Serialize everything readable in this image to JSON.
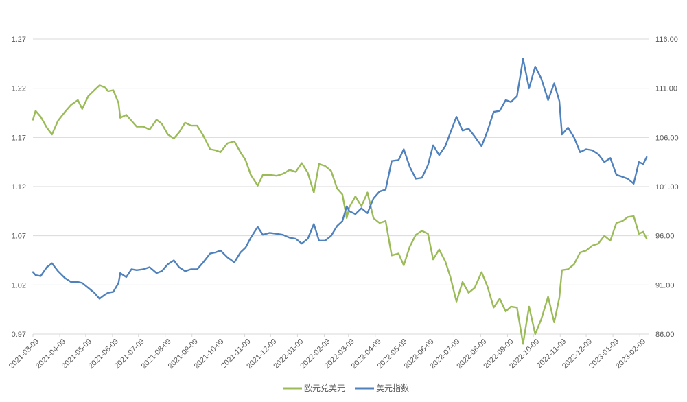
{
  "chart_data": {
    "type": "line",
    "title": "",
    "xlabel": "",
    "ylabel_left": "",
    "ylabel_right": "",
    "x_tick_labels": [
      "2021-03-09",
      "2021-04-09",
      "2021-05-09",
      "2021-06-09",
      "2021-07-09",
      "2021-08-09",
      "2021-09-09",
      "2021-10-09",
      "2021-11-09",
      "2021-12-09",
      "2022-01-09",
      "2022-02-09",
      "2022-03-09",
      "2022-04-09",
      "2022-05-09",
      "2022-06-09",
      "2022-07-09",
      "2022-08-09",
      "2022-09-09",
      "2022-10-09",
      "2022-11-09",
      "2022-12-09",
      "2023-01-09",
      "2023-02-09"
    ],
    "x_range": [
      "2021-03-09",
      "2023-02-20"
    ],
    "y_left": {
      "min": 0.97,
      "max": 1.27,
      "ticks": [
        "0.97",
        "1.02",
        "1.07",
        "1.12",
        "1.17",
        "1.22",
        "1.27"
      ]
    },
    "y_right": {
      "min": 86,
      "max": 116,
      "ticks": [
        "86.00",
        "91.00",
        "96.00",
        "101.00",
        "106.00",
        "111.00",
        "116.00"
      ]
    },
    "grid": "horizontal",
    "legend_position": "bottom",
    "series": [
      {
        "name": "欧元兑美元",
        "axis": "left",
        "color": "#9BBB59",
        "points": [
          [
            "2021-03-09",
            1.188
          ],
          [
            "2021-03-12",
            1.197
          ],
          [
            "2021-03-18",
            1.191
          ],
          [
            "2021-03-25",
            1.18
          ],
          [
            "2021-03-31",
            1.173
          ],
          [
            "2021-04-07",
            1.187
          ],
          [
            "2021-04-15",
            1.196
          ],
          [
            "2021-04-22",
            1.203
          ],
          [
            "2021-04-30",
            1.208
          ],
          [
            "2021-05-05",
            1.199
          ],
          [
            "2021-05-12",
            1.212
          ],
          [
            "2021-05-19",
            1.218
          ],
          [
            "2021-05-25",
            1.223
          ],
          [
            "2021-05-31",
            1.221
          ],
          [
            "2021-06-04",
            1.217
          ],
          [
            "2021-06-10",
            1.218
          ],
          [
            "2021-06-16",
            1.205
          ],
          [
            "2021-06-18",
            1.19
          ],
          [
            "2021-06-25",
            1.193
          ],
          [
            "2021-07-01",
            1.187
          ],
          [
            "2021-07-07",
            1.181
          ],
          [
            "2021-07-15",
            1.181
          ],
          [
            "2021-07-22",
            1.178
          ],
          [
            "2021-07-30",
            1.188
          ],
          [
            "2021-08-05",
            1.184
          ],
          [
            "2021-08-12",
            1.173
          ],
          [
            "2021-08-19",
            1.169
          ],
          [
            "2021-08-25",
            1.175
          ],
          [
            "2021-09-01",
            1.185
          ],
          [
            "2021-09-08",
            1.182
          ],
          [
            "2021-09-15",
            1.182
          ],
          [
            "2021-09-22",
            1.172
          ],
          [
            "2021-09-30",
            1.158
          ],
          [
            "2021-10-06",
            1.157
          ],
          [
            "2021-10-12",
            1.155
          ],
          [
            "2021-10-20",
            1.164
          ],
          [
            "2021-10-28",
            1.166
          ],
          [
            "2021-11-04",
            1.155
          ],
          [
            "2021-11-10",
            1.147
          ],
          [
            "2021-11-16",
            1.132
          ],
          [
            "2021-11-24",
            1.121
          ],
          [
            "2021-11-30",
            1.132
          ],
          [
            "2021-12-08",
            1.132
          ],
          [
            "2021-12-16",
            1.131
          ],
          [
            "2021-12-23",
            1.133
          ],
          [
            "2021-12-31",
            1.137
          ],
          [
            "2022-01-07",
            1.135
          ],
          [
            "2022-01-14",
            1.144
          ],
          [
            "2022-01-21",
            1.134
          ],
          [
            "2022-01-28",
            1.114
          ],
          [
            "2022-02-03",
            1.143
          ],
          [
            "2022-02-10",
            1.141
          ],
          [
            "2022-02-17",
            1.136
          ],
          [
            "2022-02-24",
            1.118
          ],
          [
            "2022-03-02",
            1.112
          ],
          [
            "2022-03-07",
            1.088
          ],
          [
            "2022-03-10",
            1.099
          ],
          [
            "2022-03-17",
            1.11
          ],
          [
            "2022-03-24",
            1.1
          ],
          [
            "2022-03-31",
            1.114
          ],
          [
            "2022-04-07",
            1.088
          ],
          [
            "2022-04-14",
            1.083
          ],
          [
            "2022-04-21",
            1.085
          ],
          [
            "2022-04-28",
            1.05
          ],
          [
            "2022-05-06",
            1.052
          ],
          [
            "2022-05-12",
            1.04
          ],
          [
            "2022-05-19",
            1.059
          ],
          [
            "2022-05-26",
            1.071
          ],
          [
            "2022-06-02",
            1.075
          ],
          [
            "2022-06-09",
            1.072
          ],
          [
            "2022-06-15",
            1.046
          ],
          [
            "2022-06-22",
            1.056
          ],
          [
            "2022-06-29",
            1.044
          ],
          [
            "2022-07-05",
            1.028
          ],
          [
            "2022-07-12",
            1.003
          ],
          [
            "2022-07-19",
            1.023
          ],
          [
            "2022-07-26",
            1.012
          ],
          [
            "2022-08-02",
            1.017
          ],
          [
            "2022-08-10",
            1.033
          ],
          [
            "2022-08-17",
            1.018
          ],
          [
            "2022-08-24",
            0.997
          ],
          [
            "2022-08-31",
            1.006
          ],
          [
            "2022-09-07",
            0.993
          ],
          [
            "2022-09-13",
            0.998
          ],
          [
            "2022-09-20",
            0.997
          ],
          [
            "2022-09-27",
            0.96
          ],
          [
            "2022-10-04",
            0.998
          ],
          [
            "2022-10-11",
            0.97
          ],
          [
            "2022-10-18",
            0.985
          ],
          [
            "2022-10-26",
            1.008
          ],
          [
            "2022-11-02",
            0.982
          ],
          [
            "2022-11-08",
            1.007
          ],
          [
            "2022-11-11",
            1.035
          ],
          [
            "2022-11-18",
            1.036
          ],
          [
            "2022-11-25",
            1.041
          ],
          [
            "2022-12-02",
            1.053
          ],
          [
            "2022-12-09",
            1.055
          ],
          [
            "2022-12-16",
            1.06
          ],
          [
            "2022-12-23",
            1.062
          ],
          [
            "2022-12-30",
            1.07
          ],
          [
            "2023-01-06",
            1.065
          ],
          [
            "2023-01-13",
            1.083
          ],
          [
            "2023-01-20",
            1.085
          ],
          [
            "2023-01-26",
            1.089
          ],
          [
            "2023-02-02",
            1.09
          ],
          [
            "2023-02-08",
            1.072
          ],
          [
            "2023-02-13",
            1.074
          ],
          [
            "2023-02-17",
            1.067
          ]
        ]
      },
      {
        "name": "美元指数",
        "axis": "right",
        "color": "#4F81BD",
        "points": [
          [
            "2021-03-09",
            92.3
          ],
          [
            "2021-03-12",
            92.0
          ],
          [
            "2021-03-18",
            91.9
          ],
          [
            "2021-03-25",
            92.8
          ],
          [
            "2021-03-31",
            93.2
          ],
          [
            "2021-04-07",
            92.4
          ],
          [
            "2021-04-15",
            91.7
          ],
          [
            "2021-04-22",
            91.3
          ],
          [
            "2021-04-30",
            91.3
          ],
          [
            "2021-05-05",
            91.2
          ],
          [
            "2021-05-12",
            90.7
          ],
          [
            "2021-05-19",
            90.2
          ],
          [
            "2021-05-25",
            89.6
          ],
          [
            "2021-05-31",
            90.0
          ],
          [
            "2021-06-04",
            90.2
          ],
          [
            "2021-06-10",
            90.3
          ],
          [
            "2021-06-16",
            91.2
          ],
          [
            "2021-06-18",
            92.2
          ],
          [
            "2021-06-25",
            91.8
          ],
          [
            "2021-07-01",
            92.6
          ],
          [
            "2021-07-07",
            92.5
          ],
          [
            "2021-07-15",
            92.6
          ],
          [
            "2021-07-22",
            92.8
          ],
          [
            "2021-07-30",
            92.2
          ],
          [
            "2021-08-05",
            92.4
          ],
          [
            "2021-08-12",
            93.1
          ],
          [
            "2021-08-19",
            93.5
          ],
          [
            "2021-08-25",
            92.8
          ],
          [
            "2021-09-01",
            92.4
          ],
          [
            "2021-09-08",
            92.6
          ],
          [
            "2021-09-15",
            92.6
          ],
          [
            "2021-09-22",
            93.3
          ],
          [
            "2021-09-30",
            94.2
          ],
          [
            "2021-10-06",
            94.3
          ],
          [
            "2021-10-12",
            94.5
          ],
          [
            "2021-10-20",
            93.8
          ],
          [
            "2021-10-28",
            93.3
          ],
          [
            "2021-11-04",
            94.3
          ],
          [
            "2021-11-10",
            94.8
          ],
          [
            "2021-11-16",
            95.8
          ],
          [
            "2021-11-24",
            96.9
          ],
          [
            "2021-11-30",
            96.1
          ],
          [
            "2021-12-08",
            96.3
          ],
          [
            "2021-12-16",
            96.2
          ],
          [
            "2021-12-23",
            96.1
          ],
          [
            "2021-12-31",
            95.8
          ],
          [
            "2022-01-07",
            95.7
          ],
          [
            "2022-01-14",
            95.2
          ],
          [
            "2022-01-21",
            95.7
          ],
          [
            "2022-01-28",
            97.2
          ],
          [
            "2022-02-03",
            95.5
          ],
          [
            "2022-02-10",
            95.5
          ],
          [
            "2022-02-17",
            96.0
          ],
          [
            "2022-02-24",
            97.0
          ],
          [
            "2022-03-02",
            97.5
          ],
          [
            "2022-03-07",
            99.0
          ],
          [
            "2022-03-10",
            98.5
          ],
          [
            "2022-03-17",
            98.2
          ],
          [
            "2022-03-24",
            98.8
          ],
          [
            "2022-03-31",
            98.3
          ],
          [
            "2022-04-07",
            99.8
          ],
          [
            "2022-04-14",
            100.5
          ],
          [
            "2022-04-21",
            100.7
          ],
          [
            "2022-04-28",
            103.6
          ],
          [
            "2022-05-06",
            103.7
          ],
          [
            "2022-05-12",
            104.8
          ],
          [
            "2022-05-19",
            103.0
          ],
          [
            "2022-05-26",
            101.8
          ],
          [
            "2022-06-02",
            101.9
          ],
          [
            "2022-06-09",
            103.2
          ],
          [
            "2022-06-15",
            105.2
          ],
          [
            "2022-06-22",
            104.2
          ],
          [
            "2022-06-29",
            105.1
          ],
          [
            "2022-07-05",
            106.5
          ],
          [
            "2022-07-12",
            108.1
          ],
          [
            "2022-07-19",
            106.7
          ],
          [
            "2022-07-26",
            106.9
          ],
          [
            "2022-08-02",
            106.1
          ],
          [
            "2022-08-10",
            105.1
          ],
          [
            "2022-08-17",
            106.7
          ],
          [
            "2022-08-24",
            108.6
          ],
          [
            "2022-08-31",
            108.7
          ],
          [
            "2022-09-07",
            109.8
          ],
          [
            "2022-09-13",
            109.6
          ],
          [
            "2022-09-20",
            110.2
          ],
          [
            "2022-09-27",
            114.0
          ],
          [
            "2022-10-04",
            111.0
          ],
          [
            "2022-10-11",
            113.2
          ],
          [
            "2022-10-18",
            112.0
          ],
          [
            "2022-10-26",
            109.8
          ],
          [
            "2022-11-02",
            111.5
          ],
          [
            "2022-11-08",
            109.7
          ],
          [
            "2022-11-11",
            106.3
          ],
          [
            "2022-11-18",
            107.0
          ],
          [
            "2022-11-25",
            106.0
          ],
          [
            "2022-12-02",
            104.5
          ],
          [
            "2022-12-09",
            104.8
          ],
          [
            "2022-12-16",
            104.7
          ],
          [
            "2022-12-23",
            104.3
          ],
          [
            "2022-12-30",
            103.5
          ],
          [
            "2023-01-06",
            103.9
          ],
          [
            "2023-01-13",
            102.2
          ],
          [
            "2023-01-20",
            102.0
          ],
          [
            "2023-01-26",
            101.8
          ],
          [
            "2023-02-02",
            101.3
          ],
          [
            "2023-02-08",
            103.5
          ],
          [
            "2023-02-13",
            103.3
          ],
          [
            "2023-02-17",
            104.0
          ]
        ]
      }
    ]
  }
}
